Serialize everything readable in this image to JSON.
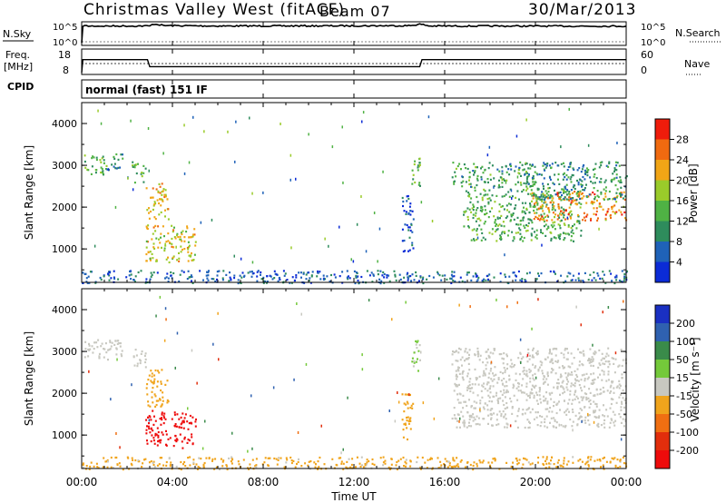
{
  "header": {
    "title": "Christmas Valley West (fitACF)",
    "beam": "Beam 07",
    "date": "30/Mar/2013"
  },
  "noise_panel": {
    "left_label": "N.Sky",
    "right_label": "N.Search",
    "ticks_left": [
      "10^5",
      "10^0"
    ],
    "ticks_right": [
      "10^5",
      "10^0"
    ]
  },
  "freq_panel": {
    "left_label_line1": "Freq.",
    "left_label_line2": "[MHz]",
    "right_label": "Nave",
    "ticks_left": [
      "18",
      "8"
    ],
    "ticks_right": [
      "60",
      "0"
    ]
  },
  "cpid": {
    "label": "CPID",
    "value": "normal (fast) 151 IF"
  },
  "x_axis": {
    "label": "Time UT",
    "ticks": [
      "00:00",
      "04:00",
      "08:00",
      "12:00",
      "16:00",
      "20:00",
      "00:00"
    ]
  },
  "colors": {
    "power_scale": [
      "#0b2bd6",
      "#1f62b8",
      "#2e8c5c",
      "#4fb244",
      "#9acb2a",
      "#f1a516",
      "#f06a10",
      "#ef1c0b"
    ],
    "velocity_scale": [
      "#1a30c2",
      "#2f61b0",
      "#3a8b4a",
      "#74c93a",
      "#c8c8c0",
      "#f0a41c",
      "#f06f12",
      "#e22e0c",
      "#ee0b0b"
    ],
    "ground_scatter": "#c8c8c0"
  },
  "chart_data": [
    {
      "type": "line",
      "panel": "noise",
      "x_range_hours": [
        0,
        24
      ],
      "series": [
        {
          "name": "N.Sky",
          "x": [
            0,
            0.05,
            0.3,
            3,
            3.2,
            3.6,
            6,
            9,
            12,
            14.5,
            14.9,
            15.3,
            18,
            24
          ],
          "y": [
            1,
            30000,
            24000,
            26000,
            80000,
            32000,
            25000,
            26000,
            28000,
            30000,
            70000,
            25000,
            24000,
            23000
          ]
        },
        {
          "name": "N.Search",
          "x": [
            0,
            24
          ],
          "y": [
            1,
            1
          ]
        }
      ]
    },
    {
      "type": "line",
      "panel": "frequency",
      "x_range_hours": [
        0,
        24
      ],
      "y_left_range_mhz": [
        8,
        18
      ],
      "series": [
        {
          "name": "Freq.",
          "x": [
            0,
            0.05,
            2.9,
            3.0,
            14.9,
            15.0,
            24
          ],
          "y": [
            8,
            14.5,
            14.5,
            11,
            11,
            14.5,
            14.5
          ]
        },
        {
          "name": "Nave",
          "x": [
            0,
            24
          ],
          "y": [
            24,
            24
          ]
        }
      ]
    },
    {
      "type": "heatmap",
      "panel": "power",
      "x_label": "Time UT",
      "y_label": "Slant Range [km]",
      "y_ticks": [
        "1000",
        "2000",
        "3000",
        "4000"
      ],
      "y_range_km": [
        200,
        4500
      ],
      "colorbar": {
        "label": "Power [dB]",
        "ticks": [
          "4",
          "8",
          "12",
          "16",
          "20",
          "24",
          "28"
        ],
        "range": [
          0,
          32
        ]
      },
      "regions": [
        {
          "t0": 0.0,
          "t1": 1.0,
          "r0": 2800,
          "r1": 3300,
          "value": 14
        },
        {
          "t0": 1.0,
          "t1": 1.8,
          "r0": 2900,
          "r1": 3300,
          "value": 12
        },
        {
          "t0": 2.2,
          "t1": 2.8,
          "r0": 2600,
          "r1": 3100,
          "value": 13
        },
        {
          "t0": 2.8,
          "t1": 3.8,
          "r0": 1700,
          "r1": 2600,
          "value": 22
        },
        {
          "t0": 2.8,
          "t1": 5.0,
          "r0": 700,
          "r1": 1600,
          "value": 20
        },
        {
          "t0": 14.5,
          "t1": 14.9,
          "r0": 2500,
          "r1": 3300,
          "value": 14
        },
        {
          "t0": 14.1,
          "t1": 14.6,
          "r0": 900,
          "r1": 2300,
          "value": 4
        },
        {
          "t0": 16.3,
          "t1": 20.0,
          "r0": 2500,
          "r1": 3100,
          "value": 12
        },
        {
          "t0": 16.8,
          "t1": 22.0,
          "r0": 1200,
          "r1": 2500,
          "value": 13
        },
        {
          "t0": 19.8,
          "t1": 24.0,
          "r0": 1700,
          "r1": 2400,
          "value": 24
        },
        {
          "t0": 19.5,
          "t1": 24.0,
          "r0": 2200,
          "r1": 3100,
          "value": 10
        },
        {
          "t0": 0.0,
          "t1": 24.0,
          "r0": 200,
          "r1": 500,
          "value": 6
        }
      ]
    },
    {
      "type": "heatmap",
      "panel": "velocity",
      "x_label": "Time UT",
      "y_label": "Slant Range [km]",
      "y_ticks": [
        "1000",
        "2000",
        "3000",
        "4000"
      ],
      "y_range_km": [
        200,
        4500
      ],
      "colorbar": {
        "label": "Velocity [m s⁻¹]",
        "ticks": [
          "200",
          "100",
          "50",
          "15",
          "-15",
          "-50",
          "-100",
          "-200"
        ],
        "range": [
          -250,
          250
        ]
      },
      "regions": [
        {
          "t0": 0.0,
          "t1": 1.8,
          "r0": 2800,
          "r1": 3300,
          "value": 0,
          "ground_scatter": true
        },
        {
          "t0": 2.2,
          "t1": 2.8,
          "r0": 2600,
          "r1": 3100,
          "value": 0,
          "ground_scatter": true
        },
        {
          "t0": 2.8,
          "t1": 3.8,
          "r0": 1700,
          "r1": 2600,
          "value": -60
        },
        {
          "t0": 2.8,
          "t1": 5.0,
          "r0": 700,
          "r1": 1600,
          "value": -220
        },
        {
          "t0": 14.5,
          "t1": 14.9,
          "r0": 2500,
          "r1": 3300,
          "value": 30
        },
        {
          "t0": 14.1,
          "t1": 14.6,
          "r0": 900,
          "r1": 2000,
          "value": -60
        },
        {
          "t0": 16.3,
          "t1": 24.0,
          "r0": 1200,
          "r1": 3100,
          "value": 0,
          "ground_scatter": true
        },
        {
          "t0": 0.0,
          "t1": 24.0,
          "r0": 200,
          "r1": 500,
          "value": -40
        }
      ]
    }
  ]
}
